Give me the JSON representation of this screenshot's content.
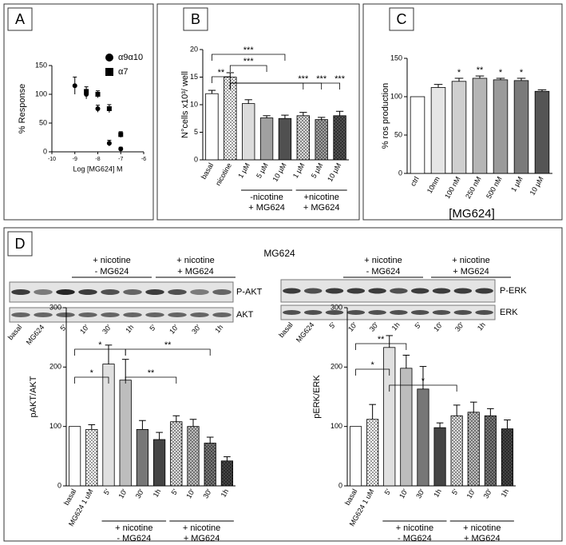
{
  "figure": {
    "panel_labels": [
      "A",
      "B",
      "C",
      "D"
    ],
    "d_title": "MG624",
    "blots": [
      {
        "rows": [
          "P-AKT",
          "AKT"
        ],
        "lanes": [
          "basal",
          "MG624",
          "5'",
          "10'",
          "30'",
          "1h",
          "5'",
          "10'",
          "30'",
          "1h"
        ],
        "groups": [
          [
            "+ nicotine",
            "- MG624"
          ],
          [
            "+ nicotine",
            "+ MG624"
          ]
        ]
      },
      {
        "rows": [
          "P-ERK",
          "ERK"
        ],
        "lanes": [
          "basal",
          "MG624",
          "5'",
          "10'",
          "30'",
          "1h",
          "5'",
          "10'",
          "30'",
          "1h"
        ],
        "groups": [
          [
            "+ nicotine",
            "- MG624"
          ],
          [
            "+ nicotine",
            "+ MG624"
          ]
        ]
      }
    ]
  },
  "chart_data": [
    {
      "type": "scatter",
      "xlabel": "Log [MG624] M",
      "ylabel": "% Response",
      "xlim": [
        -10,
        -6
      ],
      "xticks": [
        -10,
        -9,
        -8,
        -7,
        -6
      ],
      "ylim": [
        0,
        150
      ],
      "yticks": [
        0,
        50,
        100,
        150
      ],
      "series": [
        {
          "name": "α9α10",
          "marker": "circle",
          "color": "#000000",
          "x": [
            -9,
            -8.5,
            -8,
            -7.5,
            -7
          ],
          "values": [
            115,
            100,
            75,
            15,
            5
          ],
          "errors": [
            15,
            8,
            6,
            5,
            3
          ]
        },
        {
          "name": "α7",
          "marker": "square",
          "color": "#000000",
          "x": [
            -8.5,
            -8,
            -7.5,
            -7
          ],
          "values": [
            105,
            100,
            75,
            30
          ],
          "errors": [
            8,
            6,
            7,
            5
          ]
        }
      ]
    },
    {
      "type": "bar",
      "ylabel": "N°cells x10³/ well",
      "categories": [
        "basal",
        "nicotine",
        "1 µM",
        "5 µM",
        "10 µM",
        "1 µM",
        "5 µM",
        "10 µM"
      ],
      "values": [
        12,
        15,
        10.2,
        7.6,
        7.5,
        8,
        7.3,
        8
      ],
      "errors": [
        0.6,
        0.8,
        0.7,
        0.4,
        0.6,
        0.6,
        0.4,
        0.8
      ],
      "colors": [
        "#ffffff",
        "#ffffff",
        "#dcdcdc",
        "#a0a0a0",
        "#505050",
        "#dcdcdc",
        "#a0a0a0",
        "#505050"
      ],
      "dotted": [
        false,
        true,
        false,
        false,
        false,
        true,
        true,
        true
      ],
      "ylim": [
        0,
        20
      ],
      "yticks": [
        0,
        5,
        10,
        15,
        20
      ],
      "brackets": [
        "***",
        "***",
        "**",
        "***",
        "***",
        "***"
      ],
      "groups": [
        [
          "-nicotine",
          "+ MG624"
        ],
        [
          "+nicotine",
          "+ MG624"
        ]
      ]
    },
    {
      "type": "bar",
      "ylabel": "% ros production",
      "xlabel": "[MG624]",
      "categories": [
        "ctrl",
        "10nm",
        "100 nM",
        "250 nM",
        "500 nM",
        "1 µM",
        "10 µM"
      ],
      "values": [
        100,
        112,
        120,
        124,
        122,
        121,
        107
      ],
      "errors": [
        0,
        4,
        4,
        3,
        2,
        3,
        2
      ],
      "significance": [
        null,
        null,
        "*",
        "**",
        "*",
        "*",
        null
      ],
      "colors": [
        "#ffffff",
        "#e6e6e6",
        "#cfcfcf",
        "#b5b5b5",
        "#9a9a9a",
        "#7a7a7a",
        "#555555"
      ],
      "dotted": [
        false,
        false,
        false,
        false,
        false,
        false,
        false
      ],
      "ylim": [
        0,
        150
      ],
      "yticks": [
        0,
        50,
        100,
        150
      ]
    },
    {
      "type": "bar",
      "ylabel": "pAKT/AKT",
      "categories": [
        "basal",
        "MG624 1 uM",
        "5'",
        "10'",
        "30'",
        "1h",
        "5'",
        "10'",
        "30'",
        "1h"
      ],
      "values": [
        100,
        95,
        205,
        178,
        95,
        78,
        108,
        100,
        72,
        42
      ],
      "errors": [
        0,
        8,
        32,
        35,
        15,
        12,
        10,
        12,
        10,
        7
      ],
      "colors": [
        "#ffffff",
        "#ffffff",
        "#e0e0e0",
        "#bdbdbd",
        "#777777",
        "#444444",
        "#e0e0e0",
        "#bdbdbd",
        "#777777",
        "#444444"
      ],
      "dotted": [
        false,
        true,
        false,
        false,
        false,
        false,
        true,
        true,
        true,
        true
      ],
      "ylim": [
        0,
        300
      ],
      "yticks": [
        0,
        100,
        200,
        300
      ],
      "brackets": [
        "*",
        "*",
        "**",
        "**"
      ],
      "groups": [
        [
          "+ nicotine",
          "- MG624"
        ],
        [
          "+ nicotine",
          "+ MG624"
        ]
      ]
    },
    {
      "type": "bar",
      "ylabel": "pERK/ERK",
      "categories": [
        "basal",
        "MG624 1 uM",
        "5'",
        "10'",
        "30'",
        "1h",
        "5'",
        "10'",
        "30'",
        "1h"
      ],
      "values": [
        100,
        112,
        233,
        198,
        163,
        98,
        118,
        124,
        118,
        96
      ],
      "errors": [
        0,
        25,
        20,
        22,
        38,
        8,
        18,
        17,
        12,
        15
      ],
      "colors": [
        "#ffffff",
        "#ffffff",
        "#e0e0e0",
        "#bdbdbd",
        "#777777",
        "#444444",
        "#e0e0e0",
        "#bdbdbd",
        "#777777",
        "#444444"
      ],
      "dotted": [
        false,
        true,
        false,
        false,
        false,
        false,
        true,
        true,
        true,
        true
      ],
      "ylim": [
        0,
        300
      ],
      "yticks": [
        0,
        100,
        200,
        300
      ],
      "brackets": [
        "**",
        "*",
        "*"
      ],
      "groups": [
        [
          "+ nicotine",
          "- MG624"
        ],
        [
          "+ nicotine",
          "+ MG624"
        ]
      ]
    }
  ]
}
